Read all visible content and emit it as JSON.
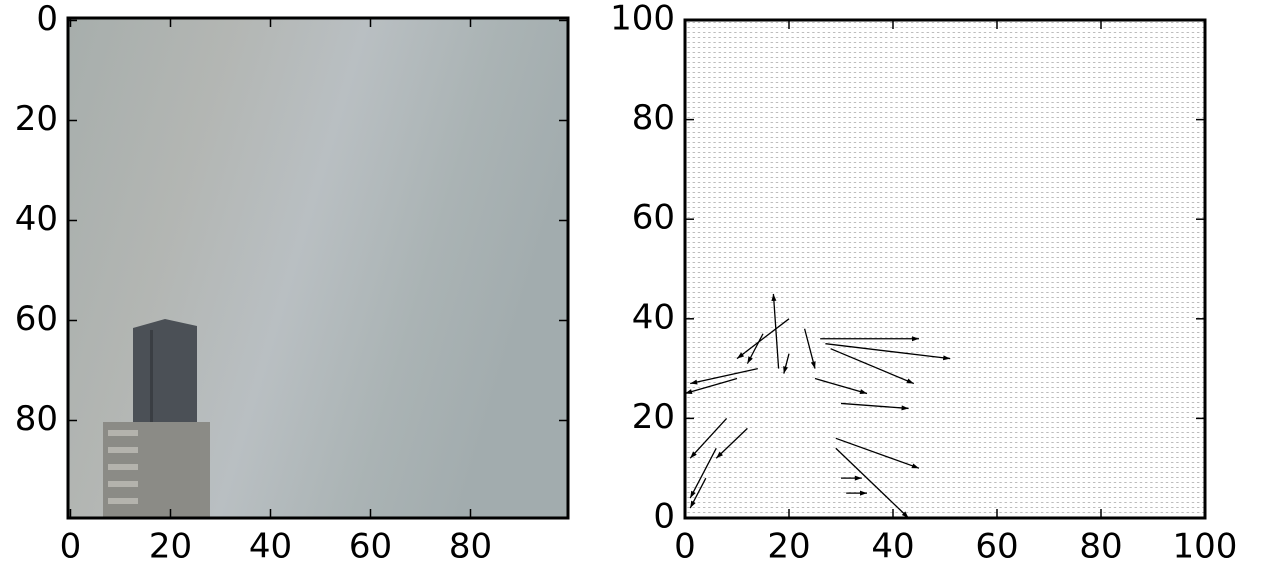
{
  "chart_data": [
    {
      "type": "image",
      "xlim": [
        -0.5,
        99.5
      ],
      "ylim": [
        99.5,
        -0.5
      ],
      "xticks": [
        0,
        20,
        40,
        60,
        80
      ],
      "yticks": [
        0,
        20,
        40,
        60,
        80
      ]
    },
    {
      "type": "quiver",
      "xlim": [
        0,
        100
      ],
      "ylim": [
        0,
        100
      ],
      "xticks": [
        0,
        20,
        40,
        60,
        80,
        100
      ],
      "yticks": [
        0,
        20,
        40,
        60,
        80,
        100
      ],
      "color": "#000000",
      "x": [
        26,
        27,
        28,
        30,
        29,
        29,
        20,
        14,
        10,
        18,
        15,
        23,
        25,
        8,
        6,
        4,
        30,
        31,
        20,
        12
      ],
      "y": [
        36,
        35,
        34,
        23,
        16,
        14,
        40,
        30,
        28,
        30,
        37,
        38,
        28,
        20,
        14,
        8,
        8,
        5,
        33,
        18
      ],
      "u": [
        19,
        24,
        16,
        13,
        16,
        14,
        -10,
        -13,
        -10,
        -1,
        -3,
        2,
        10,
        -7,
        -5,
        -3,
        4,
        4,
        -1,
        -6
      ],
      "v": [
        0,
        -3,
        -7,
        -1,
        -6,
        -14,
        -8,
        -3,
        -3,
        15,
        -6,
        -8,
        -3,
        -8,
        -10,
        -6,
        0,
        0,
        -4,
        -6
      ]
    }
  ]
}
